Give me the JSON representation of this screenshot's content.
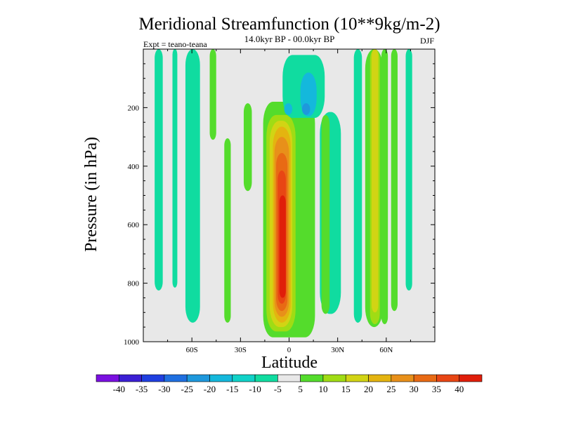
{
  "chart_data": {
    "type": "heatmap",
    "title": "Meridional Streamfunction (10**9kg/m-2)",
    "subtitle": "14.0kyr BP - 00.0kyr BP",
    "left_label": "Expt = teano-teana",
    "right_label": "DJF",
    "xlabel": "Latitude",
    "ylabel": "Pressure (in hPa)",
    "xlim": [
      -90,
      90
    ],
    "ylim": [
      1000,
      0
    ],
    "x_ticks": [
      {
        "value": -60,
        "label": "60S"
      },
      {
        "value": -30,
        "label": "30S"
      },
      {
        "value": 0,
        "label": "0"
      },
      {
        "value": 30,
        "label": "30N"
      },
      {
        "value": 60,
        "label": "60N"
      }
    ],
    "y_ticks": [
      {
        "value": 200,
        "label": "200"
      },
      {
        "value": 400,
        "label": "400"
      },
      {
        "value": 600,
        "label": "600"
      },
      {
        "value": 800,
        "label": "800"
      },
      {
        "value": 1000,
        "label": "1000"
      }
    ],
    "colorbar": {
      "labels": [
        "-40",
        "-35",
        "-30",
        "-25",
        "-20",
        "-15",
        "-10",
        "-5",
        "5",
        "10",
        "15",
        "20",
        "25",
        "30",
        "35",
        "40"
      ],
      "colors": [
        "#7a10e0",
        "#3b1fd4",
        "#1f3fe0",
        "#1f6fe0",
        "#1e98dc",
        "#14b8dc",
        "#10d2c8",
        "#10dca0",
        "#e8e8e8",
        "#54dc2c",
        "#a0dc14",
        "#d2d414",
        "#e4b410",
        "#e8901a",
        "#e86a14",
        "#e84614",
        "#e01e0a"
      ]
    },
    "background_color": "#e8e8e8",
    "field_regions": [
      {
        "name": "vert-cyan-80S",
        "color": "#10dca0",
        "lat": [
          -83,
          -78
        ],
        "p": [
          0,
          825
        ]
      },
      {
        "name": "vert-cyan-71S",
        "color": "#10dca0",
        "lat": [
          -72,
          -69
        ],
        "p": [
          0,
          815
        ]
      },
      {
        "name": "vert-cyan-62S",
        "color": "#10dca0",
        "lat": [
          -64,
          -55
        ],
        "p": [
          0,
          935
        ]
      },
      {
        "name": "vert-green-47S",
        "color": "#54dc2c",
        "lat": [
          -49,
          -45
        ],
        "p": [
          0,
          310
        ]
      },
      {
        "name": "vert-green-38S",
        "color": "#54dc2c",
        "lat": [
          -40,
          -36
        ],
        "p": [
          305,
          935
        ]
      },
      {
        "name": "vert-green-26S",
        "color": "#54dc2c",
        "lat": [
          -28,
          -23
        ],
        "p": [
          185,
          485
        ]
      },
      {
        "name": "sh-band-green",
        "color": "#54dc2c",
        "lat": [
          -16,
          16
        ],
        "p": [
          180,
          985
        ]
      },
      {
        "name": "sh-cell-ring1",
        "color": "#a0dc14",
        "lat": [
          -14,
          4
        ],
        "p": [
          225,
          965
        ]
      },
      {
        "name": "sh-cell-ring2",
        "color": "#d2d414",
        "lat": [
          -12,
          2
        ],
        "p": [
          245,
          950
        ]
      },
      {
        "name": "sh-cell-ring3",
        "color": "#e4b410",
        "lat": [
          -10,
          1
        ],
        "p": [
          265,
          935
        ]
      },
      {
        "name": "sh-cell-ring4",
        "color": "#e8901a",
        "lat": [
          -9,
          0
        ],
        "p": [
          300,
          915
        ]
      },
      {
        "name": "sh-cell-ring5",
        "color": "#e86a14",
        "lat": [
          -8,
          -1
        ],
        "p": [
          355,
          895
        ]
      },
      {
        "name": "sh-cell-ring6",
        "color": "#e84614",
        "lat": [
          -7,
          -2
        ],
        "p": [
          415,
          870
        ]
      },
      {
        "name": "sh-cell-core",
        "color": "#e01e0a",
        "lat": [
          -6,
          -2
        ],
        "p": [
          500,
          850
        ]
      },
      {
        "name": "upper-cyan-blob",
        "color": "#10dca0",
        "lat": [
          -4,
          22
        ],
        "p": [
          20,
          235
        ]
      },
      {
        "name": "upper-blue-blob-a",
        "color": "#14b8dc",
        "lat": [
          -3,
          2
        ],
        "p": [
          185,
          225
        ]
      },
      {
        "name": "upper-blue-blob-b",
        "color": "#14b8dc",
        "lat": [
          7,
          17
        ],
        "p": [
          80,
          230
        ]
      },
      {
        "name": "upper-blue-core",
        "color": "#1e98dc",
        "lat": [
          8,
          13
        ],
        "p": [
          185,
          225
        ]
      },
      {
        "name": "vert-cyan-24N",
        "color": "#10dca0",
        "lat": [
          19,
          32
        ],
        "p": [
          215,
          905
        ]
      },
      {
        "name": "vert-green-24N",
        "color": "#54dc2c",
        "lat": [
          20,
          25
        ],
        "p": [
          225,
          905
        ]
      },
      {
        "name": "vert-cyan-45N",
        "color": "#10dca0",
        "lat": [
          40,
          45
        ],
        "p": [
          0,
          935
        ]
      },
      {
        "name": "vert-green-50N",
        "color": "#54dc2c",
        "lat": [
          47,
          58
        ],
        "p": [
          0,
          950
        ]
      },
      {
        "name": "vert-yellowgreen-51N",
        "color": "#a0dc14",
        "lat": [
          50,
          56
        ],
        "p": [
          0,
          940
        ]
      },
      {
        "name": "vert-yellow-52N",
        "color": "#d2d414",
        "lat": [
          51,
          55
        ],
        "p": [
          0,
          900
        ]
      },
      {
        "name": "vert-green-59N",
        "color": "#54dc2c",
        "lat": [
          57,
          61
        ],
        "p": [
          0,
          940
        ]
      },
      {
        "name": "vert-green-64N",
        "color": "#54dc2c",
        "lat": [
          63,
          67
        ],
        "p": [
          0,
          895
        ]
      },
      {
        "name": "vert-cyan-74N",
        "color": "#10dca0",
        "lat": [
          72,
          76
        ],
        "p": [
          0,
          825
        ]
      }
    ]
  }
}
